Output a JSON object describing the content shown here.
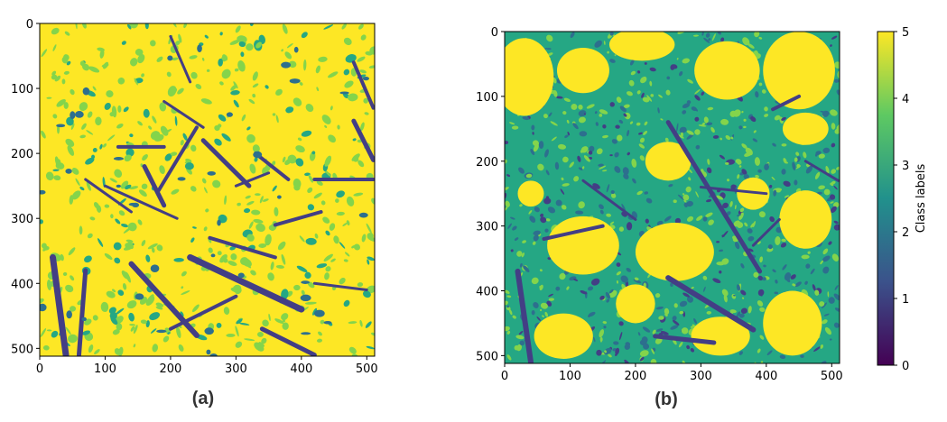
{
  "chart_data": [
    {
      "type": "heatmap",
      "panel_label": "(a)",
      "xlim": [
        0,
        512
      ],
      "ylim": [
        512,
        0
      ],
      "x_ticks": [
        0,
        100,
        200,
        300,
        400,
        500
      ],
      "y_ticks": [
        0,
        100,
        200,
        300,
        400,
        500
      ],
      "grid": false,
      "dominant_class": 5
    },
    {
      "type": "heatmap",
      "panel_label": "(b)",
      "xlim": [
        0,
        512
      ],
      "ylim": [
        512,
        0
      ],
      "x_ticks": [
        0,
        100,
        200,
        300,
        400,
        500
      ],
      "y_ticks": [
        0,
        100,
        200,
        300,
        400,
        500
      ],
      "grid": false,
      "dominant_class": 3
    }
  ],
  "colorbar": {
    "label": "Class labels",
    "range": [
      0,
      5
    ],
    "ticks": [
      0,
      1,
      2,
      3,
      4,
      5
    ],
    "colormap": "viridis",
    "colors": [
      "#440154",
      "#3b528b",
      "#21918c",
      "#5ec962",
      "#fde725"
    ]
  },
  "palette": {
    "class_1": "#433e85",
    "class_2": "#2d6f8e",
    "class_3": "#25a784",
    "class_4": "#84d44b",
    "class_5": "#fde725"
  }
}
